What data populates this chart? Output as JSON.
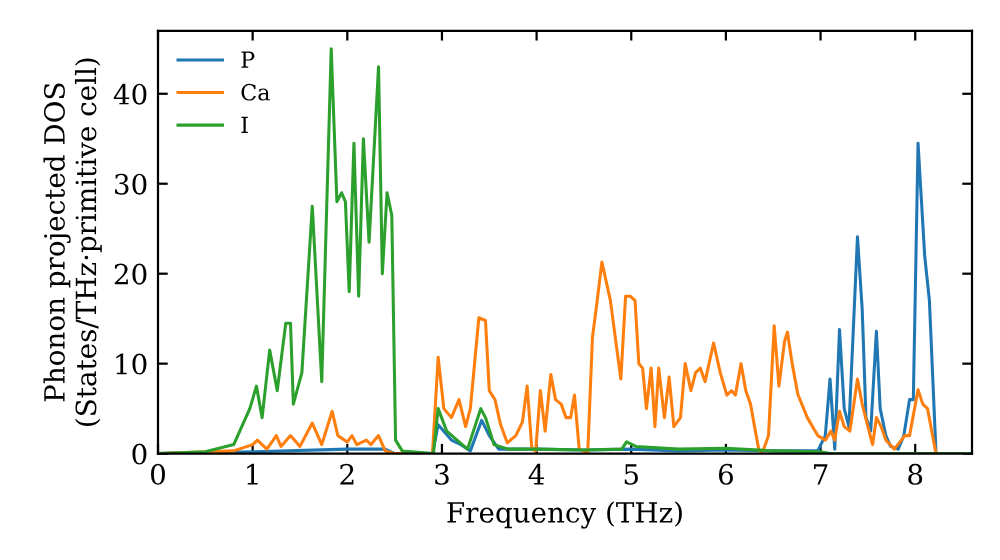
{
  "chart_data": {
    "type": "line",
    "xlabel": "Frequency (THz)",
    "ylabel": "Phonon projected DOS\n(States/THz·primitive cell)",
    "xlim": [
      0,
      8.6
    ],
    "ylim": [
      0,
      47
    ],
    "xticks": [
      0,
      1,
      2,
      3,
      4,
      5,
      6,
      7,
      8
    ],
    "yticks": [
      0,
      10,
      20,
      30,
      40
    ],
    "grid": false,
    "legend": "top left",
    "marker": "none",
    "line_style": "solid",
    "series": [
      {
        "name": "P",
        "color": "#1f77b4",
        "x": [
          0,
          1.0,
          2.0,
          2.4,
          2.5,
          2.9,
          2.96,
          3.1,
          3.2,
          3.3,
          3.42,
          3.5,
          3.6,
          4.0,
          4.5,
          5.0,
          5.5,
          6.0,
          6.5,
          6.97,
          7.05,
          7.1,
          7.15,
          7.2,
          7.25,
          7.3,
          7.39,
          7.44,
          7.48,
          7.53,
          7.59,
          7.63,
          7.69,
          7.74,
          7.82,
          7.88,
          7.94,
          7.98,
          8.03,
          8.1,
          8.15,
          8.22,
          8.6
        ],
        "values": [
          0,
          0.2,
          0.5,
          0.5,
          0,
          0,
          3.2,
          1.5,
          1,
          0.3,
          3.7,
          2,
          0.5,
          0.5,
          0.4,
          0.5,
          0.3,
          0.4,
          0.3,
          0.3,
          2,
          8.3,
          0.5,
          13.8,
          5,
          3,
          24.1,
          16,
          4,
          2.5,
          13.6,
          5,
          2,
          0.8,
          0.5,
          2,
          6,
          6,
          34.5,
          22,
          17,
          0,
          0
        ]
      },
      {
        "name": "Ca",
        "color": "#ff7f0e",
        "x": [
          0,
          0.8,
          1.0,
          1.05,
          1.15,
          1.25,
          1.3,
          1.4,
          1.5,
          1.63,
          1.73,
          1.84,
          1.9,
          2.0,
          2.05,
          2.1,
          2.2,
          2.25,
          2.33,
          2.4,
          2.5,
          2.9,
          2.96,
          3.02,
          3.1,
          3.18,
          3.25,
          3.3,
          3.39,
          3.46,
          3.5,
          3.56,
          3.62,
          3.69,
          3.78,
          3.85,
          3.9,
          3.95,
          3.99,
          4.04,
          4.09,
          4.15,
          4.2,
          4.26,
          4.31,
          4.36,
          4.4,
          4.45,
          4.54,
          4.59,
          4.64,
          4.69,
          4.78,
          4.83,
          4.89,
          4.94,
          4.99,
          5.04,
          5.08,
          5.12,
          5.16,
          5.21,
          5.25,
          5.29,
          5.35,
          5.4,
          5.45,
          5.52,
          5.57,
          5.63,
          5.68,
          5.73,
          5.78,
          5.87,
          5.94,
          6.01,
          6.06,
          6.1,
          6.16,
          6.21,
          6.26,
          6.32,
          6.35,
          6.39,
          6.45,
          6.51,
          6.56,
          6.62,
          6.65,
          6.7,
          6.76,
          6.86,
          6.97,
          7.05,
          7.11,
          7.15,
          7.2,
          7.25,
          7.31,
          7.39,
          7.44,
          7.5,
          7.55,
          7.59,
          7.64,
          7.69,
          7.78,
          7.89,
          7.94,
          8.03,
          8.08,
          8.13,
          8.22,
          8.6
        ],
        "values": [
          0,
          0.3,
          1,
          1.5,
          0.5,
          2,
          0.8,
          2,
          0.8,
          3.4,
          1,
          4.7,
          2,
          1.3,
          2,
          1,
          1.5,
          1,
          2,
          0.3,
          0,
          0,
          10.7,
          5,
          4,
          6,
          3,
          5,
          15.1,
          14.8,
          7,
          6,
          3.2,
          1.2,
          2,
          3.5,
          7.5,
          0.5,
          0.3,
          7,
          2.5,
          8.8,
          6,
          5.5,
          4,
          4,
          6.5,
          0.5,
          0.1,
          12.9,
          17,
          21.3,
          17,
          13,
          8.3,
          17.5,
          17.5,
          17,
          10,
          9.5,
          5,
          9.5,
          3,
          9.5,
          4,
          8.5,
          3,
          4,
          10,
          7,
          9,
          9.5,
          8,
          12.3,
          9,
          6.5,
          7,
          6.5,
          10,
          7,
          5.5,
          2,
          0.3,
          0.2,
          2,
          14.2,
          7.5,
          12.5,
          13.5,
          10,
          6.6,
          4,
          2,
          1.5,
          2.5,
          1.5,
          4.7,
          3,
          2.5,
          8.3,
          5.5,
          3,
          1,
          4,
          3,
          1.5,
          0.5,
          2,
          2,
          7.1,
          5.5,
          5,
          0,
          0
        ]
      },
      {
        "name": "I",
        "color": "#2ca02c",
        "x": [
          0,
          0.5,
          0.8,
          0.97,
          1.04,
          1.1,
          1.18,
          1.26,
          1.35,
          1.4,
          1.43,
          1.52,
          1.63,
          1.73,
          1.83,
          1.89,
          1.94,
          1.98,
          2.02,
          2.07,
          2.12,
          2.17,
          2.23,
          2.33,
          2.37,
          2.42,
          2.47,
          2.51,
          2.58,
          2.91,
          2.96,
          3.05,
          3.16,
          3.27,
          3.41,
          3.46,
          3.55,
          3.7,
          4.0,
          4.5,
          4.9,
          4.95,
          5.05,
          5.5,
          6.0,
          6.5,
          7.0,
          7.1,
          8.6
        ],
        "values": [
          0,
          0.2,
          1,
          5,
          7.5,
          4,
          11.5,
          7,
          14.5,
          14.5,
          5.5,
          9,
          27.5,
          8,
          45,
          28,
          29,
          28,
          18,
          34.5,
          17.5,
          35,
          23.5,
          43,
          20,
          29,
          26.5,
          1.5,
          0.3,
          0,
          5,
          2.5,
          1.5,
          0.5,
          5,
          4,
          1,
          0.5,
          0.5,
          0.4,
          0.5,
          1.3,
          0.8,
          0.5,
          0.6,
          0.3,
          0.2,
          0,
          0
        ]
      }
    ]
  }
}
